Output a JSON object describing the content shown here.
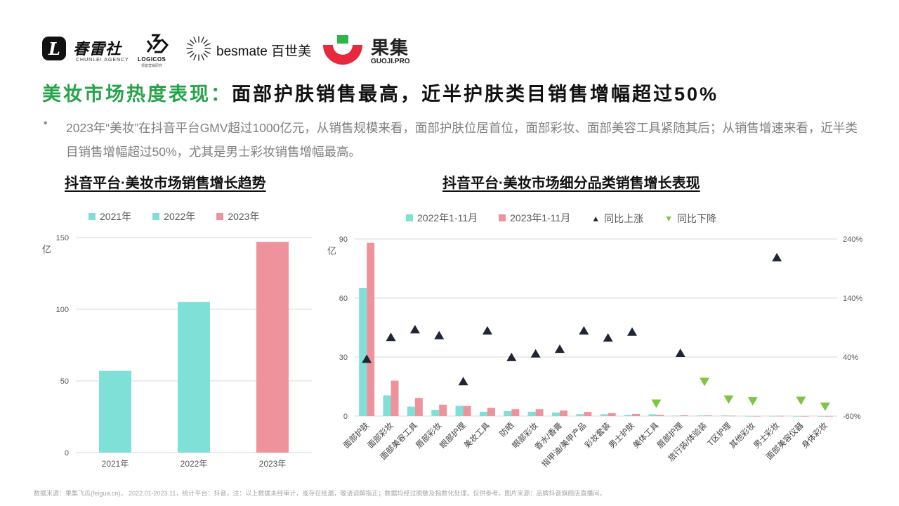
{
  "logos": {
    "chunlei": {
      "mark": "L",
      "name": "春雷社",
      "sub": "CHUNLEI AGENCY"
    },
    "logicos": {
      "name": "LOGICOS",
      "sub": "领客营销研究"
    },
    "besmate": {
      "name": "besmate 百世美"
    },
    "guoji": {
      "name": "果集",
      "sub": "GUOJI.PRO"
    }
  },
  "headline": {
    "green": "美妆市场热度表现：",
    "black": "面部护肤销售最高，近半护肤类目销售增幅超过50%"
  },
  "bullet": {
    "dot": "•",
    "text": "2023年“美妆”在抖音平台GMV超过1000亿元，从销售规模来看，面部护肤位居首位，面部彩妆、面部美容工具紧随其后；从销售增速来看，近半类目销售增幅超过50%，尤其是男士彩妆销售增幅最高。"
  },
  "chart_left": {
    "title": "抖音平台·美妆市场销售增长趋势",
    "ylabel": "亿"
  },
  "chart_right": {
    "title": "抖音平台·美妆市场细分品类销售增长表现",
    "ylabel": "亿"
  },
  "legend_left": [
    {
      "label": "2021年",
      "color": "#7fe0d8"
    },
    {
      "label": "2022年",
      "color": "#7fe0d8"
    },
    {
      "label": "2023年",
      "color": "#ee939c"
    }
  ],
  "legend_right": [
    {
      "label": "2022年1-11月",
      "color": "#7fe0d8",
      "shape": "square"
    },
    {
      "label": "2023年1-11月",
      "color": "#ee939c",
      "shape": "square"
    },
    {
      "label": "同比上涨",
      "color": "#1f2535",
      "shape": "triangle-up"
    },
    {
      "label": "同比下降",
      "color": "#7dc543",
      "shape": "triangle-down"
    }
  ],
  "chart_data": [
    {
      "type": "bar",
      "categories": [
        "2021年",
        "2022年",
        "2023年"
      ],
      "values": [
        57,
        105,
        147
      ],
      "colors": [
        "#7fe0d8",
        "#7fe0d8",
        "#ee939c"
      ],
      "ylabel": "亿",
      "ylim": [
        0,
        150
      ],
      "yticks": [
        0,
        50,
        100,
        150
      ],
      "grid": true
    },
    {
      "type": "bar",
      "categories": [
        "面部护肤",
        "面部彩妆",
        "面部美容工具",
        "唇部彩妆",
        "眼部护理",
        "美妆工具",
        "防晒",
        "眼部彩妆",
        "香水/香膏",
        "指甲油/美甲产品",
        "彩妆套装",
        "男士护肤",
        "美体工具",
        "唇部护理",
        "旅行装/体验装",
        "T区护理",
        "其他彩妆",
        "男士彩妆",
        "面部美容仪器",
        "身体彩妆"
      ],
      "series": [
        {
          "name": "2022年1-11月",
          "values": [
            65,
            10.5,
            4.8,
            3.2,
            5.2,
            2.2,
            2.5,
            2.2,
            1.8,
            1.0,
            0.9,
            0.6,
            0.9,
            0.2,
            0.3,
            0.3,
            0.05,
            0.05,
            0.02,
            0.01
          ]
        },
        {
          "name": "2023年1-11月",
          "values": [
            88,
            18,
            9.2,
            5.8,
            5.1,
            4.2,
            3.5,
            3.5,
            2.8,
            2.1,
            1.5,
            1.1,
            0.6,
            0.4,
            0.3,
            0.2,
            0.05,
            0.1,
            0.01,
            0.01
          ]
        },
        {
          "name": "同比上涨",
          "axis": "right",
          "marker": "triangle-up",
          "values": [
            36,
            73,
            86,
            76,
            -2,
            84,
            39,
            45,
            53,
            84,
            72,
            82,
            null,
            46,
            null,
            null,
            null,
            208,
            null,
            null
          ]
        },
        {
          "name": "同比下降",
          "axis": "right",
          "marker": "triangle-down",
          "values": [
            null,
            null,
            null,
            null,
            null,
            null,
            null,
            null,
            null,
            null,
            null,
            null,
            -38,
            null,
            -1,
            -31,
            -34,
            null,
            -33,
            -43
          ]
        }
      ],
      "ylabel": "亿",
      "ylim": [
        0,
        90
      ],
      "yticks": [
        0,
        30,
        60,
        90
      ],
      "y2lim": [
        -60,
        240
      ],
      "y2ticks": [
        "-60%",
        "40%",
        "140%",
        "240%"
      ],
      "grid": true
    }
  ],
  "footer": "数据来源：果集飞瓜(feigua.cn)， 2022.01-2023.11，统计平台：抖音，注：以上数据未经审计，或存在纰漏，敬请谅解指正；数据均经过脱敏及指数化处理，仅供参考。图片来源：品牌抖音旗舰店直播间。"
}
